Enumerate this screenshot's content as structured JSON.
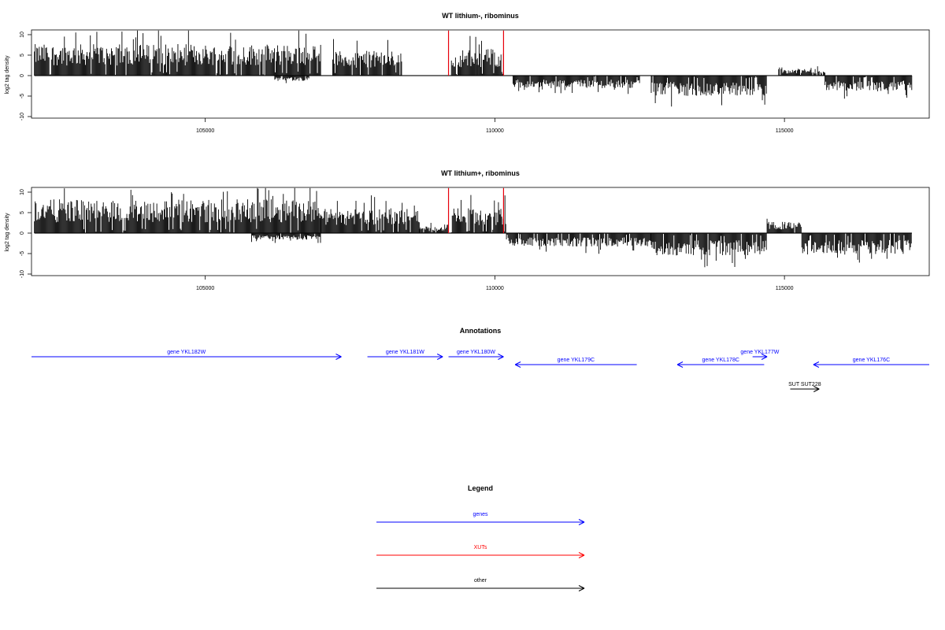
{
  "colors": {
    "positive": "#000000",
    "negative": "#000000",
    "highlight": "#e8000b",
    "gene": "#0000ff",
    "xut": "#ff0000",
    "other": "#000000"
  },
  "chart_data": [
    {
      "type": "bar",
      "title": "WT lithium-, ribominus",
      "ylabel": "log2 tag density",
      "xlim": [
        102000,
        117500
      ],
      "ylim": [
        -10,
        10
      ],
      "xticks": [
        105000,
        110000,
        115000
      ],
      "xtick_labels": [
        "105000",
        "110000",
        "115000"
      ],
      "yticks": [
        -10,
        -5,
        0,
        5,
        10
      ],
      "ytick_labels": [
        "-10",
        "-5",
        "0",
        "5",
        "10"
      ],
      "grid": false,
      "segments": [
        {
          "start": 102050,
          "end": 107000,
          "strand": "+",
          "level": 7.0
        },
        {
          "start": 106950,
          "end": 107700,
          "strand": "+",
          "level": 0.0
        },
        {
          "start": 107200,
          "end": 108400,
          "strand": "+",
          "level": 5.5
        },
        {
          "start": 109250,
          "end": 109700,
          "strand": "+",
          "level": 5.8
        },
        {
          "start": 109700,
          "end": 110150,
          "strand": "+",
          "level": 6.0
        },
        {
          "start": 110300,
          "end": 112500,
          "strand": "-",
          "level": -2.8
        },
        {
          "start": 112700,
          "end": 114700,
          "strand": "-",
          "level": -4.5
        },
        {
          "start": 114900,
          "end": 115700,
          "strand": "+",
          "level": 1.5
        },
        {
          "start": 115700,
          "end": 117200,
          "strand": "-",
          "level": -3.5
        },
        {
          "start": 106200,
          "end": 106800,
          "strand": "-",
          "level": -1.2
        }
      ],
      "highlights": [
        {
          "position": 109200,
          "value": 11
        },
        {
          "position": 110150,
          "value": 11
        }
      ]
    },
    {
      "type": "bar",
      "title": "WT lithium+, ribominus",
      "ylabel": "log2 tag density",
      "xlim": [
        102000,
        117500
      ],
      "ylim": [
        -10,
        10
      ],
      "xticks": [
        105000,
        110000,
        115000
      ],
      "xtick_labels": [
        "105000",
        "110000",
        "115000"
      ],
      "yticks": [
        -10,
        -5,
        0,
        5,
        10
      ],
      "ytick_labels": [
        "-10",
        "-5",
        "0",
        "5",
        "10"
      ],
      "grid": false,
      "segments": [
        {
          "start": 102050,
          "end": 107000,
          "strand": "+",
          "level": 7.5
        },
        {
          "start": 107000,
          "end": 108700,
          "strand": "+",
          "level": 5.5
        },
        {
          "start": 108700,
          "end": 109200,
          "strand": "+",
          "level": 1.5
        },
        {
          "start": 109250,
          "end": 110200,
          "strand": "+",
          "level": 5.5
        },
        {
          "start": 110200,
          "end": 112700,
          "strand": "-",
          "level": -3.0
        },
        {
          "start": 112700,
          "end": 114700,
          "strand": "-",
          "level": -5.0
        },
        {
          "start": 114700,
          "end": 115300,
          "strand": "+",
          "level": 2.5
        },
        {
          "start": 115300,
          "end": 117200,
          "strand": "-",
          "level": -4.8
        },
        {
          "start": 105800,
          "end": 107000,
          "strand": "-",
          "level": -1.5
        }
      ],
      "highlights": [
        {
          "position": 109200,
          "value": 11
        },
        {
          "position": 110150,
          "value": 11
        }
      ]
    }
  ],
  "annotations": {
    "title": "Annotations",
    "items": [
      {
        "label": "gene YKL182W",
        "type": "gene",
        "start": 102000,
        "end": 107350,
        "strand": "+",
        "row": 0
      },
      {
        "label": "gene YKL181W",
        "type": "gene",
        "start": 107800,
        "end": 109100,
        "strand": "+",
        "row": 0
      },
      {
        "label": "gene YKL180W",
        "type": "gene",
        "start": 109200,
        "end": 110150,
        "strand": "+",
        "row": 0
      },
      {
        "label": "gene YKL179C",
        "type": "gene",
        "start": 110350,
        "end": 112450,
        "strand": "-",
        "row": 1
      },
      {
        "label": "gene YKL178C",
        "type": "gene",
        "start": 113150,
        "end": 114650,
        "strand": "-",
        "row": 1
      },
      {
        "label": "gene YKL177W",
        "type": "gene",
        "start": 114450,
        "end": 114700,
        "strand": "+",
        "row": 0
      },
      {
        "label": "gene YKL176C",
        "type": "gene",
        "start": 115500,
        "end": 117500,
        "strand": "-",
        "row": 1
      },
      {
        "label": "SUT SUT228",
        "type": "other",
        "start": 115100,
        "end": 115600,
        "strand": "+",
        "row": 2
      }
    ]
  },
  "legend": {
    "title": "Legend",
    "items": [
      {
        "label": "genes",
        "type": "gene"
      },
      {
        "label": "XUTs",
        "type": "xut"
      },
      {
        "label": "other",
        "type": "other"
      }
    ]
  }
}
